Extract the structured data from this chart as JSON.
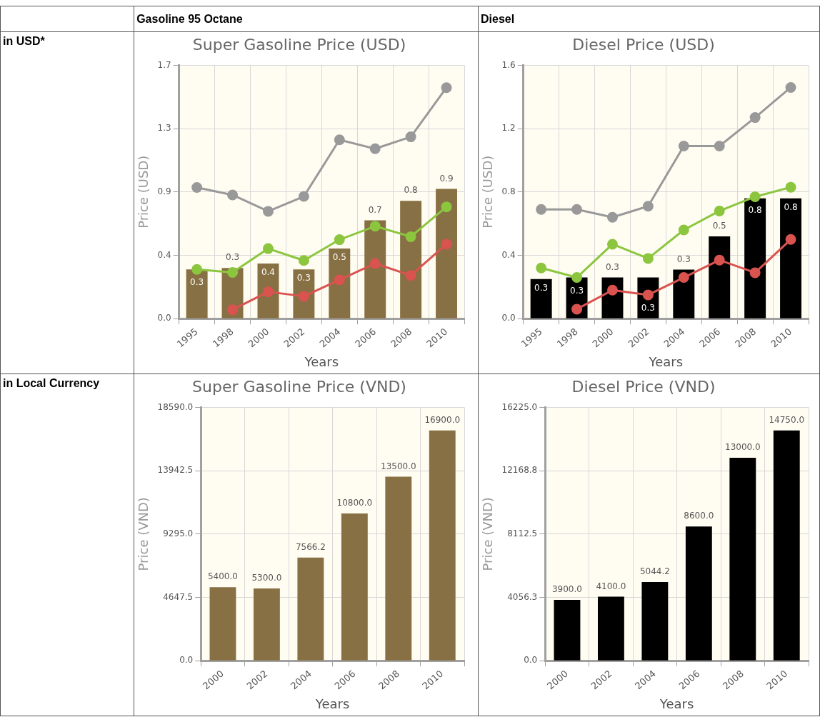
{
  "chart_data": [
    {
      "type": "other",
      "annotations": [
        "Gasoline 95 Octane",
        "Diesel",
        "in USD*",
        "in Local Currency"
      ]
    },
    {
      "type": "bar",
      "title": "Super Gasoline Price (USD)",
      "xlabel": "Years",
      "ylabel": "Price (USD)",
      "categories": [
        "1995",
        "1998",
        "2000",
        "2002",
        "2004",
        "2006",
        "2008",
        "2010"
      ],
      "series": [
        {
          "type": "bar",
          "color": "#877043",
          "values": [
            0.33,
            0.34,
            0.37,
            0.33,
            0.47,
            0.66,
            0.79,
            0.87
          ],
          "value_labels": [
            "0.3",
            "0.3",
            "0.4",
            "0.3",
            "0.5",
            "0.7",
            "0.8",
            "0.9"
          ]
        },
        {
          "type": "line",
          "color": "#999999",
          "values": [
            0.88,
            0.83,
            0.72,
            0.82,
            1.2,
            1.14,
            1.22,
            1.55
          ]
        },
        {
          "type": "line",
          "color": "#8cc63f",
          "values": [
            0.33,
            0.31,
            0.47,
            0.39,
            0.53,
            0.62,
            0.55,
            0.75
          ]
        },
        {
          "type": "line",
          "color": "#d9534f",
          "values": [
            null,
            0.06,
            0.18,
            0.15,
            0.26,
            0.37,
            0.29,
            0.5
          ]
        }
      ],
      "ylim": [
        0,
        1.7
      ],
      "yticks": [
        {
          "value": 0,
          "label": "0.0"
        },
        {
          "value": 0.425,
          "label": "0.4"
        },
        {
          "value": 0.85,
          "label": "0.9"
        },
        {
          "value": 1.275,
          "label": "1.3"
        },
        1.7
      ],
      "grid": true,
      "legend": false,
      "marker": "circle"
    },
    {
      "type": "bar",
      "title": "Diesel Price (USD)",
      "xlabel": "Years",
      "ylabel": "Price (USD)",
      "categories": [
        "1995",
        "1998",
        "2000",
        "2002",
        "2004",
        "2006",
        "2008",
        "2010"
      ],
      "series": [
        {
          "type": "bar",
          "color": "#000000",
          "values": [
            0.25,
            0.26,
            0.26,
            0.26,
            0.31,
            0.52,
            0.76,
            0.76
          ],
          "value_labels": [
            "0.3",
            "0.3",
            "0.3",
            "0.3",
            "0.3",
            "0.5",
            "0.8",
            "0.8"
          ]
        },
        {
          "type": "line",
          "color": "#999999",
          "values": [
            0.69,
            0.69,
            0.64,
            0.71,
            1.09,
            1.09,
            1.27,
            1.46
          ]
        },
        {
          "type": "line",
          "color": "#8cc63f",
          "values": [
            0.32,
            0.26,
            0.47,
            0.38,
            0.56,
            0.68,
            0.77,
            0.83
          ]
        },
        {
          "type": "line",
          "color": "#d9534f",
          "values": [
            null,
            0.06,
            0.18,
            0.15,
            0.26,
            0.37,
            0.29,
            0.5
          ]
        }
      ],
      "ylim": [
        0,
        1.6
      ],
      "yticks": [
        {
          "value": 0,
          "label": "0.0"
        },
        0.4,
        0.8,
        1.2,
        1.6
      ],
      "grid": true,
      "legend": false,
      "marker": "circle"
    },
    {
      "type": "bar",
      "title": "Super Gasoline Price (VND)",
      "xlabel": "Years",
      "ylabel": "Price (VND)",
      "categories": [
        "2000",
        "2002",
        "2004",
        "2006",
        "2008",
        "2010"
      ],
      "series": [
        {
          "type": "bar",
          "color": "#877043",
          "values": [
            5400,
            5300,
            7566.2,
            10800,
            13500,
            16900
          ],
          "value_labels": [
            "5400.0",
            "5300.0",
            "7566.2",
            "10800.0",
            "13500.0",
            "16900.0"
          ]
        }
      ],
      "ylim": [
        0,
        18590
      ],
      "yticks": [
        {
          "value": 0,
          "label": "0.0"
        },
        {
          "value": 4647.5,
          "label": "4647.5"
        },
        {
          "value": 9295,
          "label": "9295.0"
        },
        {
          "value": 13942.5,
          "label": "13942.5"
        },
        {
          "value": 18590,
          "label": "18590.0"
        }
      ],
      "grid": true,
      "legend": false
    },
    {
      "type": "bar",
      "title": "Diesel Price (VND)",
      "xlabel": "Years",
      "ylabel": "Price (VND)",
      "categories": [
        "2000",
        "2002",
        "2004",
        "2006",
        "2008",
        "2010"
      ],
      "series": [
        {
          "type": "bar",
          "color": "#000000",
          "values": [
            3900,
            4100,
            5044.2,
            8600,
            13000,
            14750
          ],
          "value_labels": [
            "3900.0",
            "4100.0",
            "5044.2",
            "8600.0",
            "13000.0",
            "14750.0"
          ]
        }
      ],
      "ylim": [
        0,
        16225
      ],
      "yticks": [
        {
          "value": 0,
          "label": "0.0"
        },
        {
          "value": 4056.25,
          "label": "4056.3"
        },
        {
          "value": 8112.5,
          "label": "8112.5"
        },
        {
          "value": 12168.75,
          "label": "12168.8"
        },
        {
          "value": 16225,
          "label": "16225.0"
        }
      ],
      "grid": true,
      "legend": false
    }
  ]
}
